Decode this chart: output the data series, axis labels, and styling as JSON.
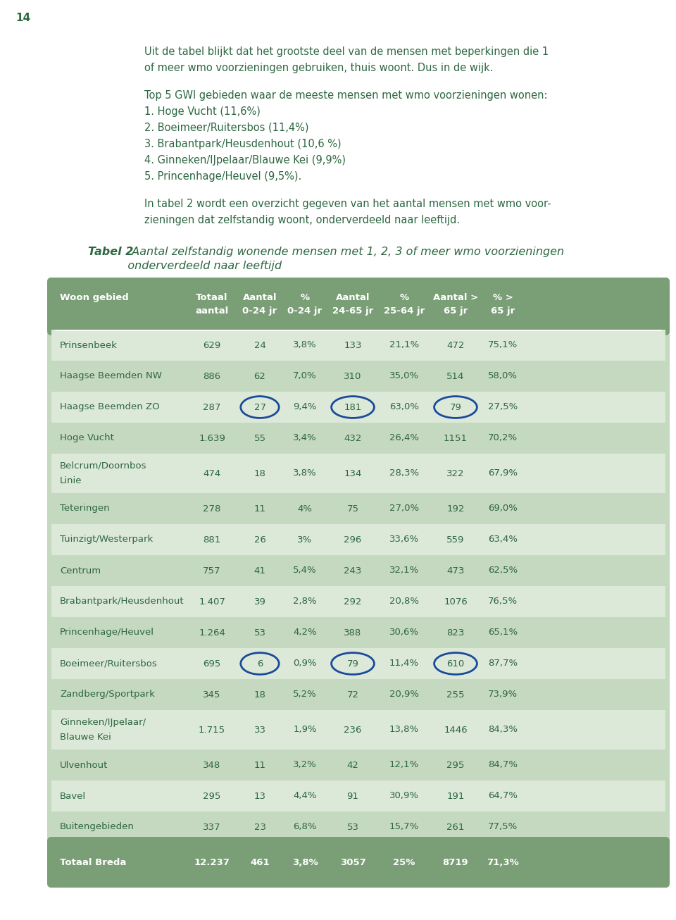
{
  "page_number": "14",
  "text_color": "#2d6741",
  "background_color": "#ffffff",
  "intro_text_block1": [
    "Uit de tabel blijkt dat het grootste deel van de mensen met beperkingen die 1",
    "of meer wmo voorzieningen gebruiken, thuis woont. Dus in de wijk."
  ],
  "intro_text_block2_header": "Top 5 GWI gebieden waar de meeste mensen met wmo voorzieningen wonen:",
  "intro_text_block2_items": [
    "1. Hoge Vucht (11,6%)",
    "2. Boeimeer/Ruitersbos (11,4%)",
    "3. Brabantpark/Heusdenhout (10,6 %)",
    "4. Ginneken/IJpelaar/Blauwe Kei (9,9%)",
    "5. Princenhage/Heuvel (9,5%)."
  ],
  "intro_text_block3": [
    "In tabel 2 wordt een overzicht gegeven van het aantal mensen met wmo voor-",
    "zieningen dat zelfstandig woont, onderverdeeld naar leeftijd."
  ],
  "tabel_label": "Tabel 2",
  "tabel_title": "  Aantal zelfstandig wonende mensen met 1, 2, 3 of meer wmo voorzieningen",
  "tabel_subtitle": "           onderverdeeld naar leeftijd",
  "table_header_bg": "#7a9e76",
  "table_row_bg_even": "#dce8d8",
  "table_row_bg_odd": "#c5d8c0",
  "table_footer_bg": "#7a9e76",
  "header_line1": [
    "Woon gebied",
    "Totaal",
    "Aantal",
    "%",
    "Aantal",
    "%",
    "Aantal >",
    "% >"
  ],
  "header_line2": [
    "",
    "aantal",
    "0-24 jr",
    "0-24 jr",
    "24-65 jr",
    "25-64 jr",
    "65 jr",
    "65 jr"
  ],
  "rows": [
    [
      "Prinsenbeek",
      "629",
      "24",
      "3,8%",
      "133",
      "21,1%",
      "472",
      "75,1%"
    ],
    [
      "Haagse Beemden NW",
      "886",
      "62",
      "7,0%",
      "310",
      "35,0%",
      "514",
      "58,0%"
    ],
    [
      "Haagse Beemden ZO",
      "287",
      "27",
      "9,4%",
      "181",
      "63,0%",
      "79",
      "27,5%"
    ],
    [
      "Hoge Vucht",
      "1.639",
      "55",
      "3,4%",
      "432",
      "26,4%",
      "1151",
      "70,2%"
    ],
    [
      "Belcrum/Doornbos|Linie",
      "474",
      "18",
      "3,8%",
      "134",
      "28,3%",
      "322",
      "67,9%"
    ],
    [
      "Teteringen",
      "278",
      "11",
      "4%",
      "75",
      "27,0%",
      "192",
      "69,0%"
    ],
    [
      "Tuinzigt/Westerpark",
      "881",
      "26",
      "3%",
      "296",
      "33,6%",
      "559",
      "63,4%"
    ],
    [
      "Centrum",
      "757",
      "41",
      "5,4%",
      "243",
      "32,1%",
      "473",
      "62,5%"
    ],
    [
      "Brabantpark/Heusdenhout",
      "1.407",
      "39",
      "2,8%",
      "292",
      "20,8%",
      "1076",
      "76,5%"
    ],
    [
      "Princenhage/Heuvel",
      "1.264",
      "53",
      "4,2%",
      "388",
      "30,6%",
      "823",
      "65,1%"
    ],
    [
      "Boeimeer/Ruitersbos",
      "695",
      "6",
      "0,9%",
      "79",
      "11,4%",
      "610",
      "87,7%"
    ],
    [
      "Zandberg/Sportpark",
      "345",
      "18",
      "5,2%",
      "72",
      "20,9%",
      "255",
      "73,9%"
    ],
    [
      "Ginneken/IJpelaar/|Blauwe Kei",
      "1.715",
      "33",
      "1,9%",
      "236",
      "13,8%",
      "1446",
      "84,3%"
    ],
    [
      "Ulvenhout",
      "348",
      "11",
      "3,2%",
      "42",
      "12,1%",
      "295",
      "84,7%"
    ],
    [
      "Bavel",
      "295",
      "13",
      "4,4%",
      "91",
      "30,9%",
      "191",
      "64,7%"
    ],
    [
      "Buitengebieden",
      "337",
      "23",
      "6,8%",
      "53",
      "15,7%",
      "261",
      "77,5%"
    ]
  ],
  "footer_row": [
    "Totaal Breda",
    "12.237",
    "461",
    "3,8%",
    "3057",
    "25%",
    "8719",
    "71,3%"
  ],
  "circled_cells_row2": [
    3,
    5,
    7
  ],
  "circled_cells_row10": [
    3,
    5,
    7
  ],
  "circle_color": "#1a4a9a"
}
